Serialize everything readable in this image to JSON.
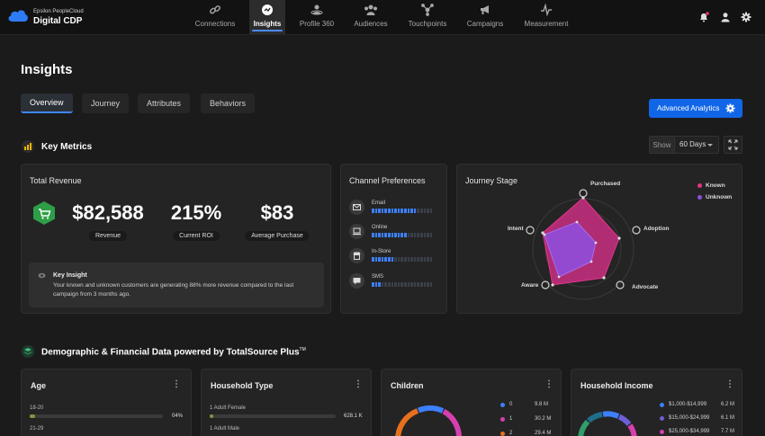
{
  "brand": {
    "small": "Epsilon PeopleCloud",
    "name": "Digital CDP"
  },
  "nav": [
    {
      "label": "Connections",
      "icon": "link-icon"
    },
    {
      "label": "Insights",
      "icon": "insights-icon"
    },
    {
      "label": "Profile 360",
      "icon": "profile-icon"
    },
    {
      "label": "Audiences",
      "icon": "audiences-icon"
    },
    {
      "label": "Touchpoints",
      "icon": "touchpoints-icon"
    },
    {
      "label": "Campaigns",
      "icon": "megaphone-icon"
    },
    {
      "label": "Measurement",
      "icon": "pulse-icon"
    }
  ],
  "page": {
    "title": "Insights"
  },
  "tabs": [
    "Overview",
    "Journey",
    "Attributes",
    "Behaviors"
  ],
  "advanced_button": "Advanced Analytics",
  "key_metrics": {
    "title": "Key Metrics",
    "show_label": "Show",
    "range": "60 Days"
  },
  "total_revenue": {
    "title": "Total Revenue",
    "metrics": [
      {
        "value": "$82,588",
        "label": "Revenue"
      },
      {
        "value": "215%",
        "label": "Current ROI"
      },
      {
        "value": "$83",
        "label": "Average Purchase"
      }
    ],
    "insight_title": "Key Insight",
    "insight_text": "Your known and unknown customers are generating 88% more revenue compared to the last campaign from 3 months ago."
  },
  "channel_preferences": {
    "title": "Channel Preferences",
    "channels": [
      {
        "label": "Email",
        "level": 0.75,
        "icon": "envelope-icon"
      },
      {
        "label": "Online",
        "level": 0.58,
        "icon": "laptop-icon"
      },
      {
        "label": "In-Store",
        "level": 0.36,
        "icon": "store-icon"
      },
      {
        "label": "SMS",
        "level": 0.16,
        "icon": "chat-icon"
      }
    ]
  },
  "journey_stage": {
    "title": "Journey Stage",
    "legend": [
      {
        "label": "Known",
        "color": "#e0358b"
      },
      {
        "label": "Unknown",
        "color": "#8e4fe0"
      }
    ],
    "axes": [
      "Purchased",
      "Adoption",
      "Advocate",
      "Aware",
      "Intent"
    ]
  },
  "demographic": {
    "title": "Demographic & Financial Data powered by TotalSource Plus",
    "tm": "TM"
  },
  "age": {
    "title": "Age",
    "rows": [
      {
        "label": "18-20",
        "value": "04%",
        "level": 0.04
      },
      {
        "label": "21-29",
        "value": "",
        "level": 0
      }
    ]
  },
  "household_type": {
    "title": "Household Type",
    "rows": [
      {
        "label": "1 Adult Female",
        "value": "628.1 K",
        "level": 0.03
      },
      {
        "label": "1 Adult Male",
        "value": "",
        "level": 0
      }
    ]
  },
  "children": {
    "title": "Children",
    "legend": [
      {
        "label": "0",
        "value": "9.8 M",
        "color": "#3d7fff"
      },
      {
        "label": "1",
        "value": "30.2 M",
        "color": "#d63fae"
      },
      {
        "label": "2",
        "value": "29.4 M",
        "color": "#e8701d"
      }
    ]
  },
  "household_income": {
    "title": "Household Income",
    "legend": [
      {
        "label": "$1,000-$14,999",
        "value": "6.2 M",
        "color": "#3d7fff"
      },
      {
        "label": "$15,000-$24,999",
        "value": "6.1 M",
        "color": "#6d5ed8"
      },
      {
        "label": "$25,000-$34,999",
        "value": "7.7 M",
        "color": "#d63fae"
      }
    ]
  }
}
